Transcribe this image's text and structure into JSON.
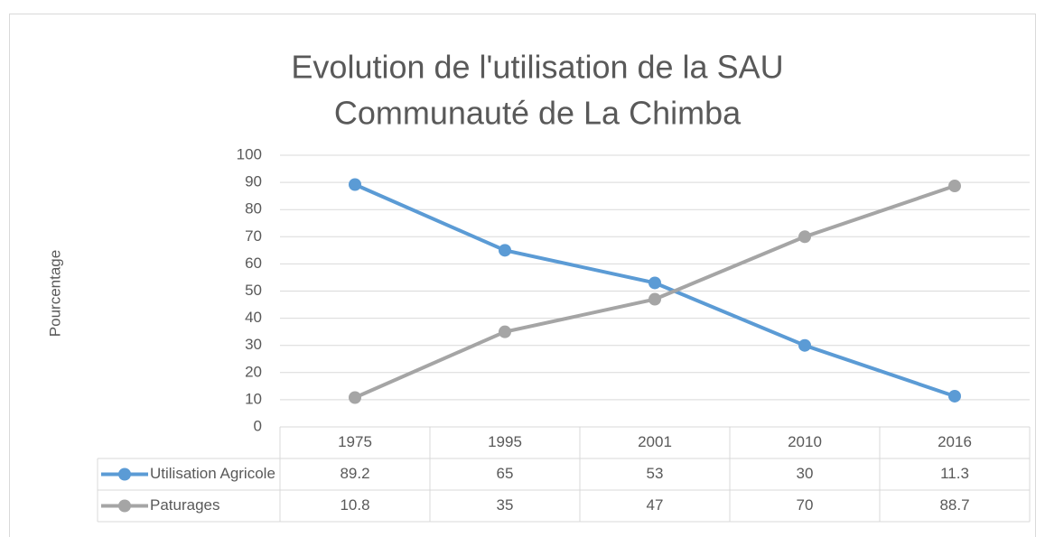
{
  "chart_data": {
    "type": "line",
    "title": [
      "Evolution de l'utilisation de la SAU",
      "Communauté de La Chimba"
    ],
    "y_label": "Pourcentage",
    "categories": [
      "1975",
      "1995",
      "2001",
      "2010",
      "2016"
    ],
    "series": [
      {
        "name": "Utilisation Agricole",
        "color": "#5b9bd5",
        "values": [
          89.2,
          65,
          53,
          30,
          11.3
        ]
      },
      {
        "name": "Paturages",
        "color": "#a5a5a5",
        "values": [
          10.8,
          35,
          47,
          70,
          88.7
        ]
      }
    ],
    "ylim": [
      0,
      100
    ],
    "yticks": [
      0,
      10,
      20,
      30,
      40,
      50,
      60,
      70,
      80,
      90,
      100
    ],
    "grid": true
  }
}
